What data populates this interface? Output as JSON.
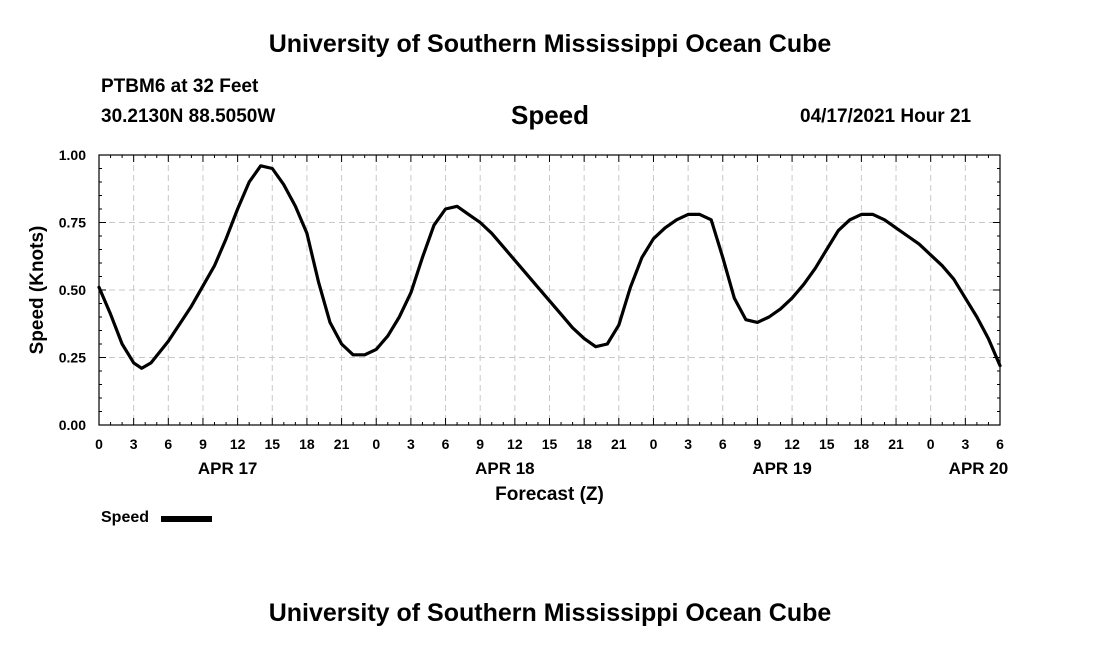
{
  "header": {
    "title": "University of Southern Mississippi Ocean Cube",
    "station": "PTBM6 at 32 Feet",
    "coordinates": "30.2130N  88.5050W",
    "chart_title": "Speed",
    "timestamp": "04/17/2021 Hour 21"
  },
  "footer": {
    "title": "University of Southern Mississippi Ocean Cube"
  },
  "legend": {
    "label": "Speed"
  },
  "chart_data": {
    "type": "line",
    "title": "Speed",
    "xlabel": "Forecast (Z)",
    "ylabel": "Speed (Knots)",
    "ylim": [
      0,
      1
    ],
    "xlim": [
      0,
      78
    ],
    "grid": true,
    "y_ticks": [
      {
        "value": 0,
        "label": "0.00"
      },
      {
        "value": 0.25,
        "label": "0.25"
      },
      {
        "value": 0.5,
        "label": "0.50"
      },
      {
        "value": 0.75,
        "label": "0.75"
      },
      {
        "value": 1,
        "label": "1.00"
      }
    ],
    "x_ticks": [
      {
        "value": 0,
        "label": "0"
      },
      {
        "value": 3,
        "label": "3"
      },
      {
        "value": 6,
        "label": "6"
      },
      {
        "value": 9,
        "label": "9"
      },
      {
        "value": 12,
        "label": "12"
      },
      {
        "value": 15,
        "label": "15"
      },
      {
        "value": 18,
        "label": "18"
      },
      {
        "value": 21,
        "label": "21"
      },
      {
        "value": 24,
        "label": "0"
      },
      {
        "value": 27,
        "label": "3"
      },
      {
        "value": 30,
        "label": "6"
      },
      {
        "value": 33,
        "label": "9"
      },
      {
        "value": 36,
        "label": "12"
      },
      {
        "value": 39,
        "label": "15"
      },
      {
        "value": 42,
        "label": "18"
      },
      {
        "value": 45,
        "label": "21"
      },
      {
        "value": 48,
        "label": "0"
      },
      {
        "value": 51,
        "label": "3"
      },
      {
        "value": 54,
        "label": "6"
      },
      {
        "value": 57,
        "label": "9"
      },
      {
        "value": 60,
        "label": "12"
      },
      {
        "value": 63,
        "label": "15"
      },
      {
        "value": 66,
        "label": "18"
      },
      {
        "value": 69,
        "label": "21"
      },
      {
        "value": 72,
        "label": "0"
      },
      {
        "value": 75,
        "label": "3"
      },
      {
        "value": 78,
        "label": "6"
      }
    ],
    "date_labels": [
      {
        "value": 12,
        "label": "APR 17"
      },
      {
        "value": 36,
        "label": "APR 18"
      },
      {
        "value": 60,
        "label": "APR 19"
      },
      {
        "value": 77,
        "label": "APR 20"
      }
    ],
    "series": [
      {
        "name": "Speed",
        "x": [
          0,
          1,
          2,
          3,
          3.7,
          4.5,
          6,
          8,
          10,
          11,
          12,
          13,
          14,
          15,
          16,
          17,
          18,
          19,
          20,
          21,
          22,
          23,
          24,
          25,
          26,
          27,
          28,
          29,
          30,
          31,
          32,
          33,
          34,
          35,
          36,
          37,
          38,
          39,
          40,
          41,
          42,
          43,
          44,
          45,
          46,
          47,
          48,
          49,
          50,
          51,
          52,
          53,
          54,
          55,
          56,
          57,
          58,
          59,
          60,
          61,
          62,
          63,
          64,
          65,
          66,
          67,
          68,
          69,
          70,
          71,
          72,
          73,
          74,
          75,
          76,
          77,
          78
        ],
        "values": [
          0.51,
          0.41,
          0.3,
          0.23,
          0.21,
          0.23,
          0.31,
          0.44,
          0.59,
          0.69,
          0.8,
          0.9,
          0.96,
          0.95,
          0.89,
          0.81,
          0.71,
          0.53,
          0.38,
          0.3,
          0.26,
          0.26,
          0.28,
          0.33,
          0.4,
          0.49,
          0.62,
          0.74,
          0.8,
          0.81,
          0.78,
          0.75,
          0.71,
          0.66,
          0.61,
          0.56,
          0.51,
          0.46,
          0.41,
          0.36,
          0.32,
          0.29,
          0.3,
          0.37,
          0.51,
          0.62,
          0.69,
          0.73,
          0.76,
          0.78,
          0.78,
          0.76,
          0.62,
          0.47,
          0.39,
          0.38,
          0.4,
          0.43,
          0.47,
          0.52,
          0.58,
          0.65,
          0.72,
          0.76,
          0.78,
          0.78,
          0.76,
          0.73,
          0.7,
          0.67,
          0.63,
          0.59,
          0.54,
          0.47,
          0.4,
          0.32,
          0.22
        ]
      }
    ]
  }
}
